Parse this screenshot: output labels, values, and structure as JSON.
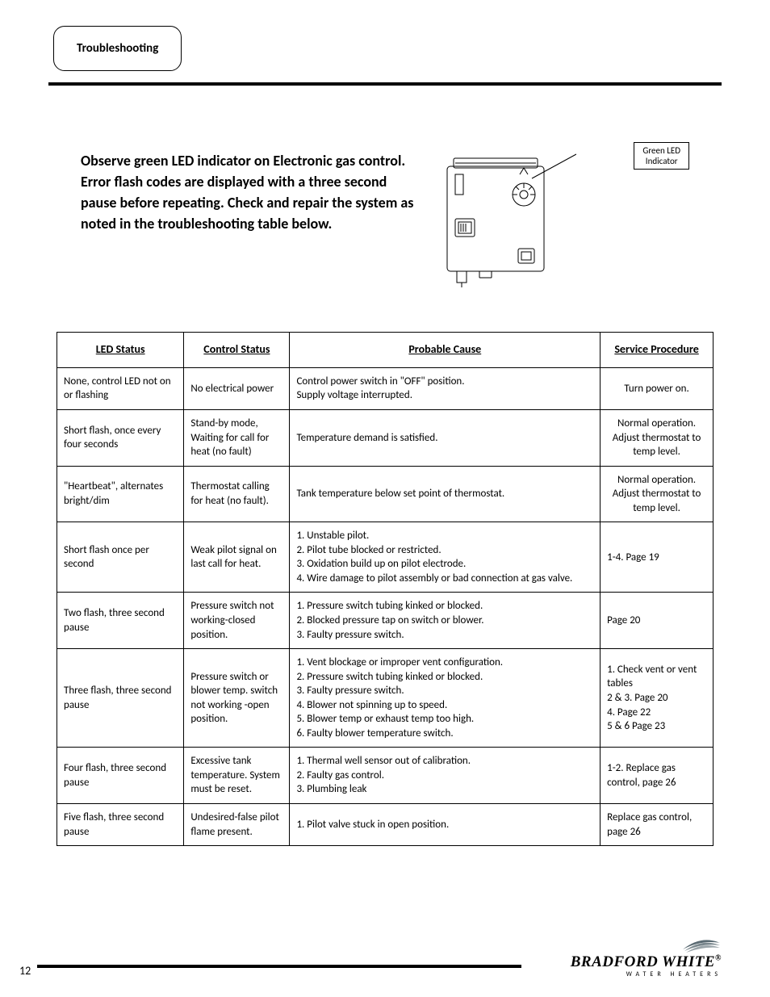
{
  "tab_title": "Troubleshooting",
  "intro": "Observe green LED indicator on Electronic gas control. Error flash codes are displayed with a three second pause before repeating. Check and repair the system as noted in the troubleshooting table below.",
  "callout": {
    "line1": "Green LED",
    "line2": "Indicator"
  },
  "diagram": {
    "stroke": "#000000",
    "width": 140,
    "height": 160
  },
  "table": {
    "headers": {
      "led": "LED Status",
      "control": "Control Status",
      "cause": "Probable Cause",
      "service": "Service Procedure"
    },
    "rows": [
      {
        "led": "None, control LED not on or flashing",
        "control": "No electrical power",
        "cause": "Control power switch in \"OFF\" position.\nSupply voltage interrupted.",
        "service": "Turn power on.",
        "service_align": "center"
      },
      {
        "led": "Short flash, once every four seconds",
        "control": "Stand-by mode, Waiting for call for heat (no fault)",
        "cause": "Temperature demand is satisfied.",
        "service": "Normal operation. Adjust thermostat to temp level.",
        "service_align": "center"
      },
      {
        "led": "\"Heartbeat\", alternates bright/dim",
        "control": "Thermostat calling for heat (no fault).",
        "cause": "Tank temperature below set point of thermostat.",
        "service": "Normal operation. Adjust thermostat to temp level.",
        "service_align": "center"
      },
      {
        "led": "Short flash once per second",
        "control": "Weak pilot signal on last call for heat.",
        "cause": "1. Unstable pilot.\n2. Pilot tube blocked or restricted.\n3. Oxidation build up on pilot electrode.\n4. Wire damage to pilot assembly or bad connection at gas valve.",
        "service": "1-4. Page 19",
        "service_align": "left"
      },
      {
        "led": "Two flash, three second pause",
        "control": "Pressure switch not working-closed position.",
        "cause": "1. Pressure switch tubing kinked or blocked.\n2. Blocked pressure tap on switch or blower.\n3. Faulty pressure switch.",
        "service": "Page 20",
        "service_align": "left"
      },
      {
        "led": "Three flash, three second pause",
        "control": "Pressure switch or blower temp. switch not working -open position.",
        "cause": "1. Vent blockage or improper vent configuration.\n2. Pressure switch tubing kinked or blocked.\n3. Faulty pressure switch.\n4. Blower not spinning up to speed.\n5. Blower temp or exhaust temp too high.\n6. Faulty blower temperature switch.",
        "service": "1. Check vent or vent tables\n2 & 3. Page 20\n4. Page 22\n5 & 6  Page 23",
        "service_align": "left"
      },
      {
        "led": "Four flash, three second pause",
        "control": "Excessive tank temperature. System must be reset.",
        "cause": "1. Thermal well sensor out of calibration.\n2. Faulty gas control.\n3. Plumbing leak",
        "service": "1-2. Replace gas control,  page 26",
        "service_align": "left"
      },
      {
        "led": "Five flash, three second pause",
        "control": "Undesired-false pilot flame present.",
        "cause": "1. Pilot valve stuck in open position.",
        "service": "Replace gas control, page 26",
        "service_align": "left"
      }
    ]
  },
  "footer": {
    "page_number": "12",
    "brand_name": "BRADFORD WHITE",
    "brand_tagline": "WATER HEATERS",
    "swoosh_colors": [
      "#5b6b73",
      "#7a878d",
      "#9aa4a9"
    ]
  }
}
